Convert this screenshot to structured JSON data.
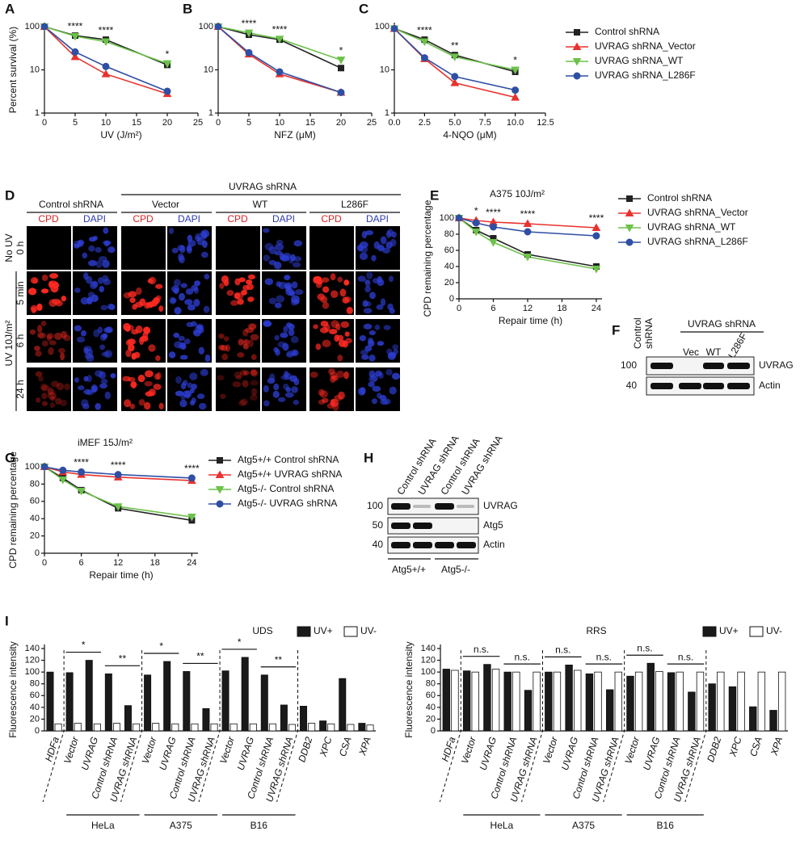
{
  "panels": [
    "A",
    "B",
    "C",
    "D",
    "E",
    "F",
    "G",
    "H",
    "I"
  ],
  "chart_data": [
    {
      "type": "line",
      "ylabel": "Percent survival (%)",
      "xlabel": "UV (J/m²)",
      "log_y": true,
      "xlim": [
        0,
        25
      ],
      "xticks": [
        0,
        5,
        10,
        15,
        20,
        25
      ],
      "ylim": [
        1,
        100
      ],
      "yticks": [
        1,
        10,
        100
      ],
      "x": [
        0,
        5,
        10,
        20
      ],
      "annotations": [
        null,
        "****",
        "****",
        "*"
      ],
      "series": [
        {
          "color": "#222222",
          "marker": "square",
          "values": [
            100,
            62,
            50,
            13
          ]
        },
        {
          "color": "#e8322e",
          "marker": "triangle-up",
          "values": [
            100,
            20,
            8,
            2.8
          ]
        },
        {
          "color": "#6cc24a",
          "marker": "triangle-down",
          "values": [
            100,
            60,
            45,
            14
          ]
        },
        {
          "color": "#2e4fa3",
          "marker": "circle",
          "values": [
            100,
            26,
            12,
            3.2
          ]
        }
      ]
    },
    {
      "type": "line",
      "xlabel": "NFZ (μM)",
      "log_y": true,
      "xlim": [
        0,
        25
      ],
      "xticks": [
        0,
        5,
        10,
        15,
        20,
        25
      ],
      "ylim": [
        1,
        100
      ],
      "yticks": [
        1,
        10,
        100
      ],
      "x": [
        0,
        5,
        10,
        20
      ],
      "annotations": [
        null,
        "****",
        "****",
        "*"
      ],
      "series": [
        {
          "color": "#222222",
          "marker": "square",
          "values": [
            100,
            65,
            50,
            11
          ]
        },
        {
          "color": "#e8322e",
          "marker": "triangle-up",
          "values": [
            100,
            23,
            8,
            3
          ]
        },
        {
          "color": "#6cc24a",
          "marker": "triangle-down",
          "values": [
            100,
            72,
            52,
            17
          ]
        },
        {
          "color": "#2e4fa3",
          "marker": "circle",
          "values": [
            100,
            25,
            9,
            3
          ]
        }
      ]
    },
    {
      "type": "line",
      "xlabel": "4-NQO (μM)",
      "log_y": true,
      "xlim": [
        0,
        12.5
      ],
      "xticks": [
        {
          "value": 0,
          "label": "0.0"
        },
        2.5,
        {
          "value": 5,
          "label": "5.0"
        },
        7.5,
        {
          "value": 10,
          "label": "10.0"
        },
        12.5
      ],
      "ylim": [
        1,
        100
      ],
      "yticks": [
        1,
        10,
        100
      ],
      "x": [
        0,
        2.5,
        5,
        10
      ],
      "annotations": [
        null,
        "****",
        "**",
        "*"
      ],
      "series": [
        {
          "name": "Control shRNA",
          "color": "#222222",
          "marker": "square",
          "values": [
            90,
            50,
            22,
            9
          ]
        },
        {
          "name": "UVRAG shRNA_Vector",
          "color": "#e8322e",
          "marker": "triangle-up",
          "values": [
            90,
            18,
            5,
            2.3
          ]
        },
        {
          "name": "UVRAG shRNA_WT",
          "color": "#6cc24a",
          "marker": "triangle-down",
          "values": [
            90,
            45,
            20,
            10
          ]
        },
        {
          "name": "UVRAG shRNA_L286F",
          "color": "#2e4fa3",
          "marker": "circle",
          "values": [
            90,
            19,
            7,
            3.4
          ]
        }
      ]
    },
    {
      "type": "line",
      "title": "A375   10J/m²",
      "ylabel": "CPD remaining percentage",
      "xlabel": "Repair time (h)",
      "xlim": [
        0,
        25
      ],
      "xticks": [
        0,
        6,
        12,
        18,
        24
      ],
      "ylim": [
        0,
        100
      ],
      "yticks": [
        0,
        20,
        40,
        60,
        80,
        100
      ],
      "x": [
        0,
        3,
        6,
        12,
        24
      ],
      "annotations": [
        null,
        "*",
        "****",
        "****",
        "****"
      ],
      "series": [
        {
          "name": "Control shRNA",
          "color": "#222222",
          "marker": "square",
          "values": [
            100,
            85,
            75,
            55,
            40
          ]
        },
        {
          "name": "UVRAG shRNA_Vector",
          "color": "#e8322e",
          "marker": "triangle-up",
          "values": [
            100,
            97,
            95,
            93,
            88
          ]
        },
        {
          "name": "UVRAG shRNA_WT",
          "color": "#6cc24a",
          "marker": "triangle-down",
          "values": [
            100,
            83,
            70,
            52,
            37
          ]
        },
        {
          "name": "UVRAG shRNA_L286F",
          "color": "#2e4fa3",
          "marker": "circle",
          "values": [
            100,
            94,
            89,
            83,
            78
          ]
        }
      ]
    },
    {
      "type": "line",
      "title": "iMEF   15J/m²",
      "ylabel": "CPD remaining percentage",
      "xlabel": "Repair time (h)",
      "xlim": [
        0,
        25
      ],
      "xticks": [
        0,
        6,
        12,
        18,
        24
      ],
      "ylim": [
        0,
        100
      ],
      "yticks": [
        0,
        20,
        40,
        60,
        80,
        100
      ],
      "x": [
        0,
        3,
        6,
        12,
        24
      ],
      "annotations": [
        null,
        null,
        "****",
        "****",
        "****"
      ],
      "series": [
        {
          "name": "Atg5+/+ Control shRNA",
          "color": "#222222",
          "marker": "square",
          "values": [
            100,
            87,
            73,
            52,
            38
          ]
        },
        {
          "name": "Atg5+/+ UVRAG shRNA",
          "color": "#e8322e",
          "marker": "triangle-up",
          "values": [
            100,
            94,
            91,
            88,
            84
          ]
        },
        {
          "name": "Atg5-/- Control shRNA",
          "color": "#6cc24a",
          "marker": "triangle-down",
          "values": [
            100,
            85,
            72,
            54,
            42
          ]
        },
        {
          "name": "Atg5-/- UVRAG shRNA",
          "color": "#2e4fa3",
          "marker": "circle",
          "values": [
            100,
            96,
            94,
            91,
            87
          ]
        }
      ]
    },
    {
      "type": "bar",
      "title": "UDS",
      "ylabel": "Fluorescence intensity",
      "ylim": [
        0,
        140
      ],
      "yticks": [
        0,
        20,
        40,
        60,
        80,
        100,
        120,
        140
      ],
      "categories": [
        "HDFa",
        "Vector",
        "UVRAG",
        "Control shRNA",
        "UVRAG shRNA",
        "Vector",
        "UVRAG",
        "Control shRNA",
        "UVRAG shRNA",
        "Vector",
        "UVRAG",
        "Control shRNA",
        "UVRAG shRNA",
        "DDB2",
        "XPC",
        "CSA",
        "XPA"
      ],
      "groups": [
        "HeLa",
        "A375",
        "B16"
      ],
      "significance": [
        null,
        "*",
        null,
        "**",
        null,
        "*",
        null,
        "**",
        null,
        "*",
        null,
        "**",
        null,
        null,
        null,
        null,
        null
      ],
      "series": [
        {
          "name": "UV+",
          "color": "#1a1a1a",
          "values": [
            100,
            99,
            120,
            97,
            43,
            95,
            118,
            101,
            38,
            102,
            125,
            95,
            44,
            42,
            17,
            89,
            13
          ]
        },
        {
          "name": "UV-",
          "color": "#ffffff",
          "values": [
            12,
            13,
            12,
            13,
            12,
            13,
            12,
            12,
            12,
            12,
            12,
            12,
            11,
            13,
            12,
            11,
            10
          ]
        }
      ]
    },
    {
      "type": "bar",
      "title": "RRS",
      "ylabel": "Fluorescence intensity",
      "ylim": [
        0,
        140
      ],
      "yticks": [
        0,
        20,
        40,
        60,
        80,
        100,
        120,
        140
      ],
      "categories": [
        "HDFa",
        "Vector",
        "UVRAG",
        "Control shRNA",
        "UVRAG shRNA",
        "Vector",
        "UVRAG",
        "Control shRNA",
        "UVRAG shRNA",
        "Vector",
        "UVRAG",
        "Control shRNA",
        "UVRAG shRNA",
        "DDB2",
        "XPC",
        "CSA",
        "XPA"
      ],
      "groups": [
        "HeLa",
        "A375",
        "B16"
      ],
      "significance": [
        null,
        "n.s.",
        null,
        "n.s.",
        null,
        "n.s.",
        null,
        "n.s.",
        null,
        "n.s.",
        null,
        "n.s.",
        null,
        null,
        null,
        null,
        null
      ],
      "series": [
        {
          "name": "UV+",
          "color": "#1a1a1a",
          "values": [
            105,
            102,
            113,
            100,
            69,
            100,
            112,
            97,
            70,
            93,
            115,
            99,
            66,
            80,
            75,
            41,
            35
          ]
        },
        {
          "name": "UV-",
          "color": "#ffffff",
          "values": [
            103,
            100,
            105,
            100,
            100,
            100,
            103,
            100,
            100,
            100,
            101,
            100,
            100,
            100,
            100,
            100,
            100
          ]
        }
      ]
    }
  ],
  "figure_d": {
    "header": "UVRAG shRNA",
    "groups": [
      "Control shRNA",
      "Vector",
      "WT",
      "L286F"
    ],
    "channels": [
      "CPD",
      "DAPI",
      "CPD",
      "DAPI",
      "CPD",
      "DAPI",
      "CPD",
      "DAPI"
    ],
    "row_groups": [
      "No UV",
      "UV 10J/m²"
    ],
    "rows": [
      "0 h",
      "5 min",
      "6 h",
      "24 h"
    ]
  },
  "figure_f": {
    "header": "UVRAG shRNA",
    "control_lane": [
      "Control",
      "shRNA"
    ],
    "lanes": [
      "Vec",
      "WT",
      "L286F"
    ],
    "markers": [
      "100",
      "40"
    ],
    "bands": [
      "UVRAG",
      "Actin"
    ]
  },
  "figure_h": {
    "lanes": [
      "Control shRNA",
      "UVRAG shRNA",
      "Control shRNA",
      "UVRAG shRNA"
    ],
    "markers": [
      "100",
      "50",
      "40"
    ],
    "bands": [
      "UVRAG",
      "Atg5",
      "Actin"
    ],
    "genotypes": [
      "Atg5+/+",
      "Atg5-/-"
    ]
  }
}
